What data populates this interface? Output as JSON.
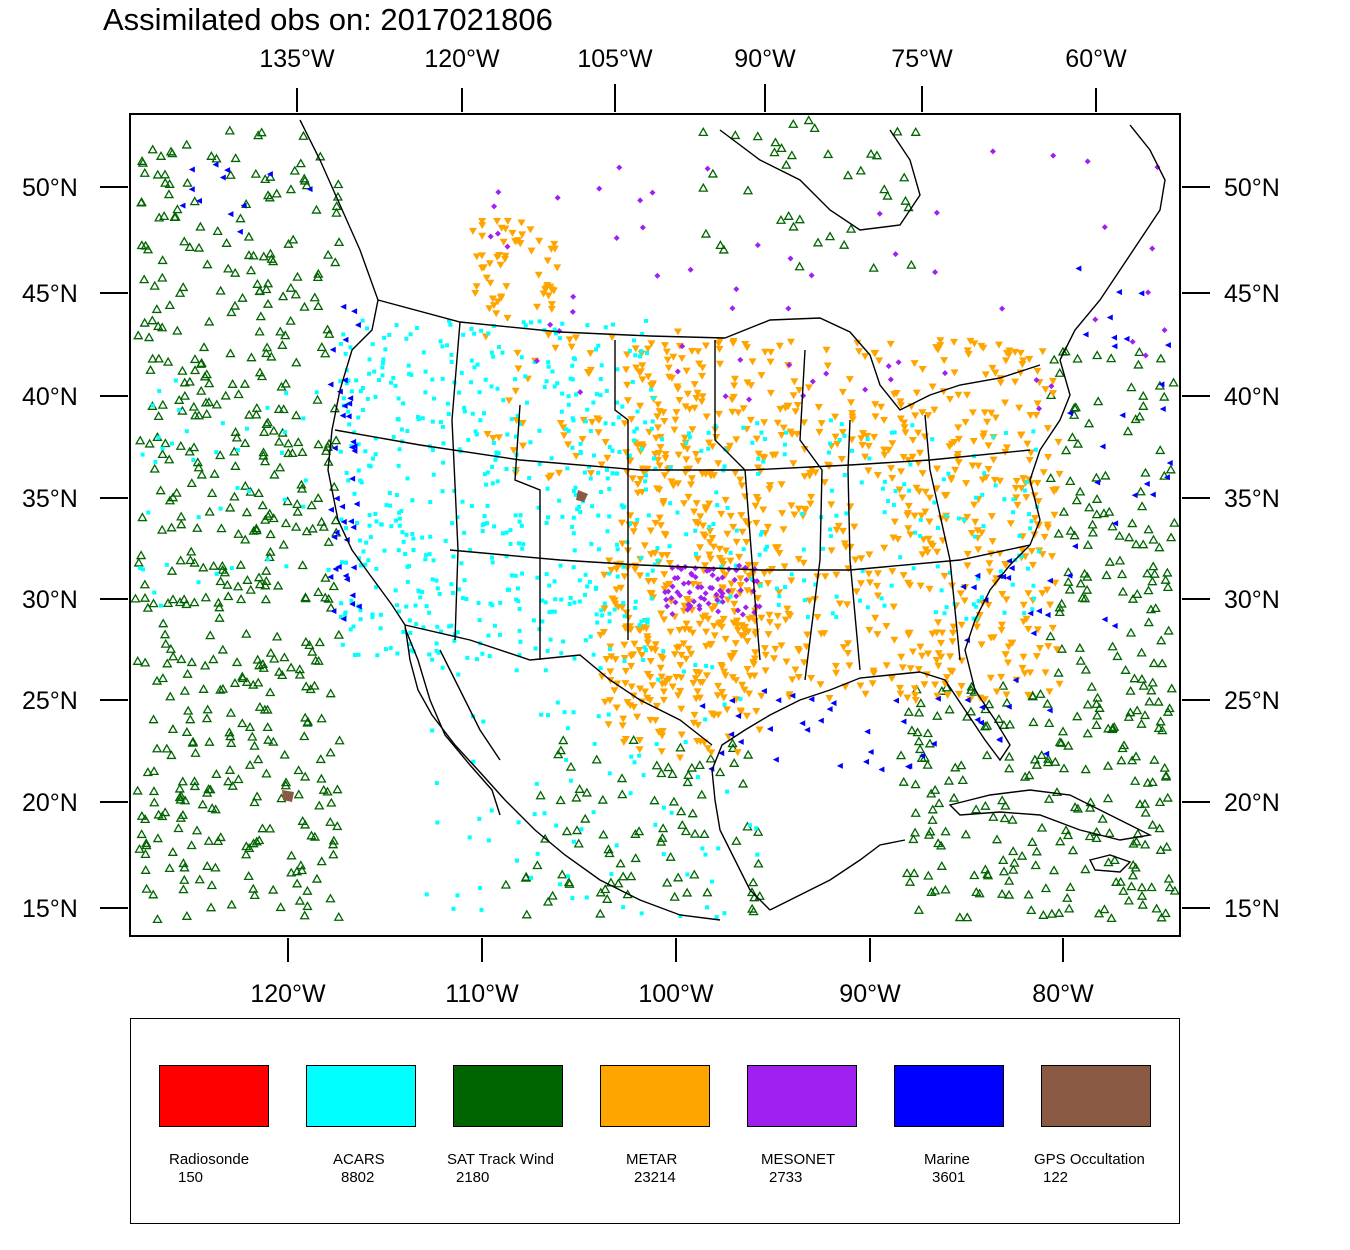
{
  "title": "Assimilated obs on: 2017021806",
  "axes": {
    "top_lon_labels": [
      "135°W",
      "120°W",
      "105°W",
      "90°W",
      "75°W",
      "60°W"
    ],
    "bottom_lon_labels": [
      "120°W",
      "110°W",
      "100°W",
      "90°W",
      "80°W"
    ],
    "lat_labels": [
      "50°N",
      "45°N",
      "40°N",
      "35°N",
      "30°N",
      "25°N",
      "20°N",
      "15°N"
    ]
  },
  "legend": [
    {
      "name": "Radiosonde",
      "count": "150",
      "color": "#ff0000"
    },
    {
      "name": "ACARS",
      "count": "8802",
      "color": "#00ffff"
    },
    {
      "name": "SAT Track Wind",
      "count": "2180",
      "color": "#006400"
    },
    {
      "name": "METAR",
      "count": "23214",
      "color": "#ffa500"
    },
    {
      "name": "MESONET",
      "count": "2733",
      "color": "#a020f0"
    },
    {
      "name": "Marine",
      "count": "3601",
      "color": "#0000ff"
    },
    {
      "name": "GPS Occultation",
      "count": "122",
      "color": "#8b5a44"
    }
  ]
}
